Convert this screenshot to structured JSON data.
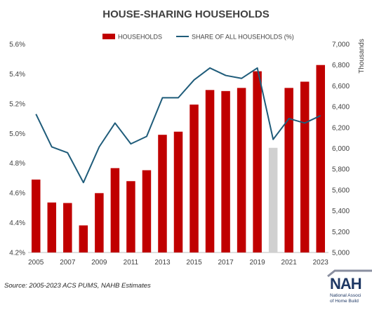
{
  "source_note": "Source: 2005-2023 ACS PUMS, NAHB Estimates",
  "logo": {
    "mark": "NAH",
    "line1": "National Associ",
    "line2": "of Home Build"
  },
  "colors": {
    "bars": "#c00000",
    "highlight_bar": "#d0d0d0",
    "line": "#1f5c7a",
    "text": "#404040"
  },
  "chart_data": {
    "type": "bar",
    "title": "HOUSE-SHARING HOUSEHOLDS",
    "legend": {
      "position": "top",
      "entries": [
        "HOUSEHOLDS",
        "SHARE OF ALL HOUSEHOLDS (%)"
      ]
    },
    "x": [
      2005,
      2006,
      2007,
      2008,
      2009,
      2010,
      2011,
      2012,
      2013,
      2014,
      2015,
      2016,
      2017,
      2018,
      2019,
      2020,
      2021,
      2022,
      2023
    ],
    "x_tick_labels": [
      "2005",
      "2007",
      "2009",
      "2011",
      "2013",
      "2015",
      "2017",
      "2019",
      "2021",
      "2023"
    ],
    "highlight_x": 2020,
    "series": [
      {
        "name": "HOUSEHOLDS",
        "kind": "bar",
        "axis": "right",
        "values": [
          5700,
          5480,
          5475,
          5260,
          5570,
          5810,
          5685,
          5790,
          6130,
          6160,
          6420,
          6560,
          6550,
          6580,
          6740,
          6005,
          6580,
          6640,
          6800
        ]
      },
      {
        "name": "SHARE OF ALL HOUSEHOLDS (%)",
        "kind": "line",
        "axis": "left",
        "values": [
          5.13,
          4.91,
          4.87,
          4.67,
          4.91,
          5.07,
          4.93,
          4.98,
          5.24,
          5.24,
          5.36,
          5.44,
          5.39,
          5.37,
          5.44,
          4.96,
          5.1,
          5.07,
          5.12
        ]
      }
    ],
    "y_left": {
      "min": 4.2,
      "max": 5.6,
      "ticks": [
        "4.2%",
        "4.4%",
        "4.6%",
        "4.8%",
        "5.0%",
        "5.2%",
        "5.4%",
        "5.6%"
      ]
    },
    "y_right": {
      "label": "Thousands",
      "min": 5000,
      "max": 7000,
      "ticks": [
        "5,000",
        "5,200",
        "5,400",
        "5,600",
        "5,800",
        "6,000",
        "6,200",
        "6,400",
        "6,600",
        "6,800",
        "7,000"
      ]
    },
    "grid": false
  }
}
